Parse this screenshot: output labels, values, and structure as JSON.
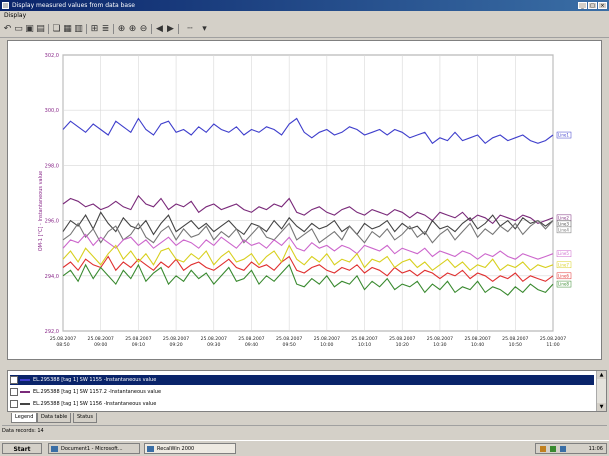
{
  "window": {
    "title": "Display measured values from data base",
    "menu": [
      "Display"
    ]
  },
  "toolbar": {
    "icons": [
      "undo-icon",
      "open-icon",
      "save-icon",
      "print-preview-icon",
      "copy-icon",
      "paste-icon",
      "properties-icon",
      "grid-icon",
      "legend-icon",
      "zoom-icon",
      "zoom-in-icon",
      "zoom-out-icon",
      "back-icon",
      "forward-icon",
      "lines-icon",
      "dropdown-icon"
    ]
  },
  "chart_data": {
    "type": "line",
    "ylabel": "OM-1 [°C] - Instantaneous value",
    "yticks": [
      "302,0",
      "300,0",
      "298,0",
      "296,0",
      "294,0",
      "292,0"
    ],
    "ylim": [
      292,
      302
    ],
    "xticks": [
      "25.08.2007 08:50",
      "25.08.2007 09:00",
      "25.08.2007 09:10",
      "25.08.2007 09:20",
      "25.08.2007 09:30",
      "25.08.2007 09:40",
      "25.08.2007 09:50",
      "25.08.2007 10:00",
      "25.08.2007 10:10",
      "25.08.2007 10:20",
      "25.08.2007 10:30",
      "25.08.2007 10:40",
      "25.08.2007 10:50",
      "25.08.2007 11:00"
    ],
    "n_points": 66,
    "series": [
      {
        "name": "Line1",
        "color": "#3f3fcc",
        "values": [
          299.3,
          299.6,
          299.4,
          299.2,
          299.5,
          299.3,
          299.1,
          299.6,
          299.4,
          299.2,
          299.7,
          299.3,
          299.1,
          299.5,
          299.6,
          299.2,
          299.3,
          299.1,
          299.4,
          299.2,
          299.5,
          299.3,
          299.2,
          299.4,
          299.1,
          299.3,
          299.2,
          299.4,
          299.3,
          299.1,
          299.5,
          299.7,
          299.2,
          299.0,
          299.2,
          299.3,
          299.1,
          299.2,
          299.4,
          299.3,
          299.1,
          299.2,
          299.3,
          299.1,
          299.3,
          299.2,
          299.0,
          299.1,
          299.2,
          298.8,
          299.0,
          298.9,
          299.2,
          298.9,
          299.0,
          299.1,
          298.8,
          299.0,
          299.1,
          298.9,
          299.0,
          299.1,
          298.9,
          298.8,
          298.9,
          299.1
        ]
      },
      {
        "name": "Line2",
        "color": "#7a2a7a",
        "values": [
          296.6,
          296.8,
          296.7,
          296.5,
          296.6,
          296.4,
          296.5,
          296.7,
          296.5,
          296.4,
          296.9,
          296.6,
          296.5,
          296.8,
          296.4,
          296.6,
          296.5,
          296.7,
          296.3,
          296.5,
          296.6,
          296.4,
          296.5,
          296.6,
          296.4,
          296.3,
          296.5,
          296.4,
          296.6,
          296.5,
          296.8,
          296.3,
          296.2,
          296.4,
          296.5,
          296.3,
          296.2,
          296.4,
          296.5,
          296.3,
          296.2,
          296.4,
          296.3,
          296.2,
          296.4,
          296.3,
          296.1,
          296.3,
          296.2,
          296.0,
          296.3,
          296.2,
          296.1,
          296.3,
          296.0,
          296.2,
          296.1,
          295.9,
          296.2,
          296.1,
          296.0,
          296.2,
          296.1,
          295.9,
          296.0,
          296.1
        ]
      },
      {
        "name": "Line3",
        "color": "#444444",
        "values": [
          295.6,
          296.0,
          295.8,
          296.2,
          295.7,
          296.3,
          295.9,
          295.6,
          296.1,
          295.8,
          295.7,
          296.0,
          295.5,
          295.9,
          296.2,
          295.6,
          295.8,
          296.0,
          295.7,
          295.9,
          295.6,
          295.8,
          296.0,
          295.7,
          295.5,
          295.9,
          295.8,
          295.6,
          296.0,
          295.7,
          296.1,
          295.8,
          295.6,
          295.9,
          295.7,
          295.8,
          296.0,
          295.6,
          295.8,
          295.5,
          295.9,
          295.7,
          295.8,
          296.0,
          295.6,
          295.9,
          295.7,
          295.8,
          295.5,
          296.0,
          295.7,
          295.8,
          295.6,
          295.9,
          296.1,
          295.7,
          295.9,
          296.2,
          295.8,
          296.0,
          295.7,
          296.1,
          295.9,
          296.0,
          295.8,
          296.0
        ]
      },
      {
        "name": "Line4",
        "color": "#777777",
        "values": [
          295.3,
          295.5,
          295.9,
          295.4,
          295.7,
          295.2,
          295.6,
          295.8,
          295.3,
          295.5,
          295.9,
          295.4,
          295.2,
          295.6,
          295.8,
          295.3,
          295.7,
          295.4,
          295.5,
          295.8,
          295.3,
          295.6,
          295.4,
          295.7,
          295.2,
          295.5,
          295.8,
          295.4,
          295.3,
          295.6,
          295.9,
          295.3,
          295.5,
          295.7,
          295.2,
          295.4,
          295.6,
          295.3,
          295.8,
          295.5,
          295.2,
          295.6,
          295.4,
          295.7,
          295.3,
          295.5,
          295.8,
          295.4,
          295.6,
          295.2,
          295.5,
          295.7,
          295.3,
          295.6,
          295.9,
          295.4,
          295.7,
          295.5,
          295.8,
          295.6,
          295.9,
          295.5,
          295.8,
          296.0,
          295.7,
          296.0
        ]
      },
      {
        "name": "Line5",
        "color": "#cc66cc",
        "values": [
          295.0,
          295.3,
          295.2,
          295.5,
          295.1,
          295.4,
          295.2,
          295.0,
          295.3,
          295.4,
          295.1,
          295.3,
          295.0,
          295.2,
          295.4,
          295.1,
          295.3,
          295.2,
          295.0,
          295.3,
          295.1,
          295.4,
          295.2,
          295.0,
          295.3,
          295.1,
          295.2,
          295.0,
          295.3,
          295.1,
          295.4,
          295.0,
          294.9,
          295.2,
          295.0,
          295.1,
          294.9,
          295.1,
          295.0,
          294.8,
          295.1,
          295.0,
          294.9,
          295.1,
          294.8,
          295.0,
          294.9,
          294.8,
          295.0,
          294.7,
          294.9,
          294.8,
          294.7,
          294.9,
          294.8,
          294.6,
          294.8,
          294.7,
          294.9,
          294.7,
          294.6,
          294.8,
          294.7,
          294.6,
          294.7,
          294.8
        ]
      },
      {
        "name": "Line6",
        "color": "#e03030",
        "values": [
          294.3,
          294.5,
          294.2,
          294.6,
          294.4,
          294.3,
          294.7,
          294.2,
          294.5,
          294.3,
          294.6,
          294.4,
          294.2,
          294.5,
          294.3,
          294.6,
          294.2,
          294.4,
          294.5,
          294.3,
          294.2,
          294.4,
          294.6,
          294.3,
          294.2,
          294.5,
          294.3,
          294.4,
          294.2,
          294.5,
          294.7,
          294.2,
          294.1,
          294.3,
          294.4,
          294.2,
          294.1,
          294.3,
          294.2,
          294.4,
          294.1,
          294.3,
          294.2,
          294.0,
          294.3,
          294.1,
          294.2,
          294.0,
          294.2,
          294.1,
          293.9,
          294.1,
          294.0,
          294.2,
          293.9,
          294.1,
          294.0,
          293.8,
          294.0,
          293.9,
          294.1,
          293.8,
          294.0,
          293.9,
          293.8,
          294.0
        ]
      },
      {
        "name": "Line7",
        "color": "#d8d020",
        "values": [
          294.6,
          294.9,
          294.5,
          295.0,
          294.7,
          294.4,
          294.8,
          295.1,
          294.6,
          294.9,
          294.5,
          294.8,
          294.4,
          294.9,
          295.0,
          294.6,
          294.5,
          294.8,
          294.6,
          294.9,
          294.4,
          294.7,
          294.9,
          294.5,
          294.6,
          294.8,
          294.4,
          294.7,
          294.9,
          294.5,
          295.1,
          294.6,
          294.4,
          294.7,
          294.5,
          294.8,
          294.4,
          294.6,
          294.5,
          294.8,
          294.3,
          294.6,
          294.5,
          294.7,
          294.3,
          294.5,
          294.6,
          294.3,
          294.5,
          294.2,
          294.4,
          294.6,
          294.3,
          294.5,
          294.2,
          294.4,
          294.3,
          294.6,
          294.2,
          294.4,
          294.3,
          294.5,
          294.2,
          294.4,
          294.3,
          294.4
        ]
      },
      {
        "name": "Line8",
        "color": "#3a8a30",
        "values": [
          294.0,
          294.2,
          293.8,
          294.4,
          293.9,
          294.3,
          294.0,
          293.7,
          294.2,
          293.9,
          294.4,
          293.8,
          294.1,
          294.3,
          293.7,
          294.0,
          293.8,
          294.2,
          293.9,
          294.1,
          293.7,
          294.0,
          294.3,
          293.8,
          293.9,
          294.2,
          293.7,
          294.0,
          293.8,
          294.1,
          294.4,
          293.7,
          293.6,
          293.9,
          293.7,
          294.0,
          293.6,
          293.8,
          293.7,
          294.0,
          293.5,
          293.8,
          293.6,
          293.9,
          293.5,
          293.7,
          293.6,
          293.8,
          293.4,
          293.7,
          293.5,
          293.8,
          293.4,
          293.6,
          293.5,
          293.8,
          293.4,
          293.6,
          293.5,
          293.3,
          293.6,
          293.4,
          293.7,
          293.5,
          293.4,
          293.7
        ]
      }
    ]
  },
  "legend": {
    "rows": [
      {
        "text": "EL.295388 [tag 1] SW 1155 -Instantaneous value",
        "color": "#3f3fcc",
        "selected": true
      },
      {
        "text": "EL.295388 [tag 1] SW 1157.2 -Instantaneous value",
        "color": "#7a2a7a",
        "selected": false
      },
      {
        "text": "EL.295388 [tag 1] SW 1156 -Instantaneous value",
        "color": "#444444",
        "selected": false
      }
    ],
    "tabs": [
      "Legend",
      "Data table",
      "Status"
    ]
  },
  "status": {
    "text": "Data records: 14"
  },
  "taskbar": {
    "start": "Start",
    "tasks": [
      "Document1 - Microsoft...",
      "RecalWin 2000"
    ],
    "clock": "11:06"
  }
}
